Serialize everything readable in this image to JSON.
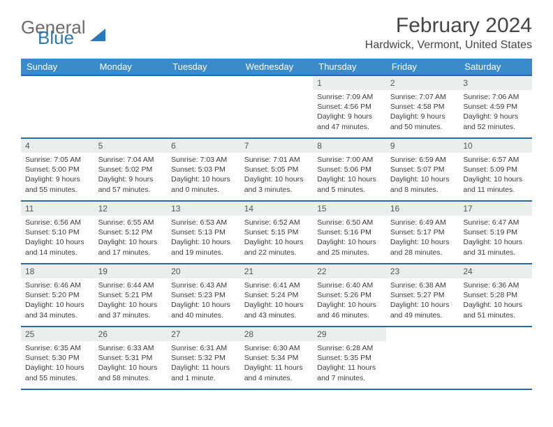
{
  "logo": {
    "line1": "General",
    "line2": "Blue"
  },
  "title": "February 2024",
  "location": "Hardwick, Vermont, United States",
  "colors": {
    "header_bg": "#3b8bc9",
    "header_text": "#ffffff",
    "row_divider": "#2a6aa0",
    "daynum_bg": "#eceded",
    "body_text": "#3a3a3a",
    "logo_blue": "#2a7ab8",
    "logo_gray": "#6a6a6a"
  },
  "day_names": [
    "Sunday",
    "Monday",
    "Tuesday",
    "Wednesday",
    "Thursday",
    "Friday",
    "Saturday"
  ],
  "weeks": [
    [
      null,
      null,
      null,
      null,
      {
        "n": "1",
        "sr": "7:09 AM",
        "ss": "4:56 PM",
        "dl": "9 hours and 47 minutes."
      },
      {
        "n": "2",
        "sr": "7:07 AM",
        "ss": "4:58 PM",
        "dl": "9 hours and 50 minutes."
      },
      {
        "n": "3",
        "sr": "7:06 AM",
        "ss": "4:59 PM",
        "dl": "9 hours and 52 minutes."
      }
    ],
    [
      {
        "n": "4",
        "sr": "7:05 AM",
        "ss": "5:00 PM",
        "dl": "9 hours and 55 minutes."
      },
      {
        "n": "5",
        "sr": "7:04 AM",
        "ss": "5:02 PM",
        "dl": "9 hours and 57 minutes."
      },
      {
        "n": "6",
        "sr": "7:03 AM",
        "ss": "5:03 PM",
        "dl": "10 hours and 0 minutes."
      },
      {
        "n": "7",
        "sr": "7:01 AM",
        "ss": "5:05 PM",
        "dl": "10 hours and 3 minutes."
      },
      {
        "n": "8",
        "sr": "7:00 AM",
        "ss": "5:06 PM",
        "dl": "10 hours and 5 minutes."
      },
      {
        "n": "9",
        "sr": "6:59 AM",
        "ss": "5:07 PM",
        "dl": "10 hours and 8 minutes."
      },
      {
        "n": "10",
        "sr": "6:57 AM",
        "ss": "5:09 PM",
        "dl": "10 hours and 11 minutes."
      }
    ],
    [
      {
        "n": "11",
        "sr": "6:56 AM",
        "ss": "5:10 PM",
        "dl": "10 hours and 14 minutes."
      },
      {
        "n": "12",
        "sr": "6:55 AM",
        "ss": "5:12 PM",
        "dl": "10 hours and 17 minutes."
      },
      {
        "n": "13",
        "sr": "6:53 AM",
        "ss": "5:13 PM",
        "dl": "10 hours and 19 minutes."
      },
      {
        "n": "14",
        "sr": "6:52 AM",
        "ss": "5:15 PM",
        "dl": "10 hours and 22 minutes."
      },
      {
        "n": "15",
        "sr": "6:50 AM",
        "ss": "5:16 PM",
        "dl": "10 hours and 25 minutes."
      },
      {
        "n": "16",
        "sr": "6:49 AM",
        "ss": "5:17 PM",
        "dl": "10 hours and 28 minutes."
      },
      {
        "n": "17",
        "sr": "6:47 AM",
        "ss": "5:19 PM",
        "dl": "10 hours and 31 minutes."
      }
    ],
    [
      {
        "n": "18",
        "sr": "6:46 AM",
        "ss": "5:20 PM",
        "dl": "10 hours and 34 minutes."
      },
      {
        "n": "19",
        "sr": "6:44 AM",
        "ss": "5:21 PM",
        "dl": "10 hours and 37 minutes."
      },
      {
        "n": "20",
        "sr": "6:43 AM",
        "ss": "5:23 PM",
        "dl": "10 hours and 40 minutes."
      },
      {
        "n": "21",
        "sr": "6:41 AM",
        "ss": "5:24 PM",
        "dl": "10 hours and 43 minutes."
      },
      {
        "n": "22",
        "sr": "6:40 AM",
        "ss": "5:26 PM",
        "dl": "10 hours and 46 minutes."
      },
      {
        "n": "23",
        "sr": "6:38 AM",
        "ss": "5:27 PM",
        "dl": "10 hours and 49 minutes."
      },
      {
        "n": "24",
        "sr": "6:36 AM",
        "ss": "5:28 PM",
        "dl": "10 hours and 51 minutes."
      }
    ],
    [
      {
        "n": "25",
        "sr": "6:35 AM",
        "ss": "5:30 PM",
        "dl": "10 hours and 55 minutes."
      },
      {
        "n": "26",
        "sr": "6:33 AM",
        "ss": "5:31 PM",
        "dl": "10 hours and 58 minutes."
      },
      {
        "n": "27",
        "sr": "6:31 AM",
        "ss": "5:32 PM",
        "dl": "11 hours and 1 minute."
      },
      {
        "n": "28",
        "sr": "6:30 AM",
        "ss": "5:34 PM",
        "dl": "11 hours and 4 minutes."
      },
      {
        "n": "29",
        "sr": "6:28 AM",
        "ss": "5:35 PM",
        "dl": "11 hours and 7 minutes."
      },
      null,
      null
    ]
  ],
  "labels": {
    "sunrise": "Sunrise:",
    "sunset": "Sunset:",
    "daylight": "Daylight:"
  }
}
